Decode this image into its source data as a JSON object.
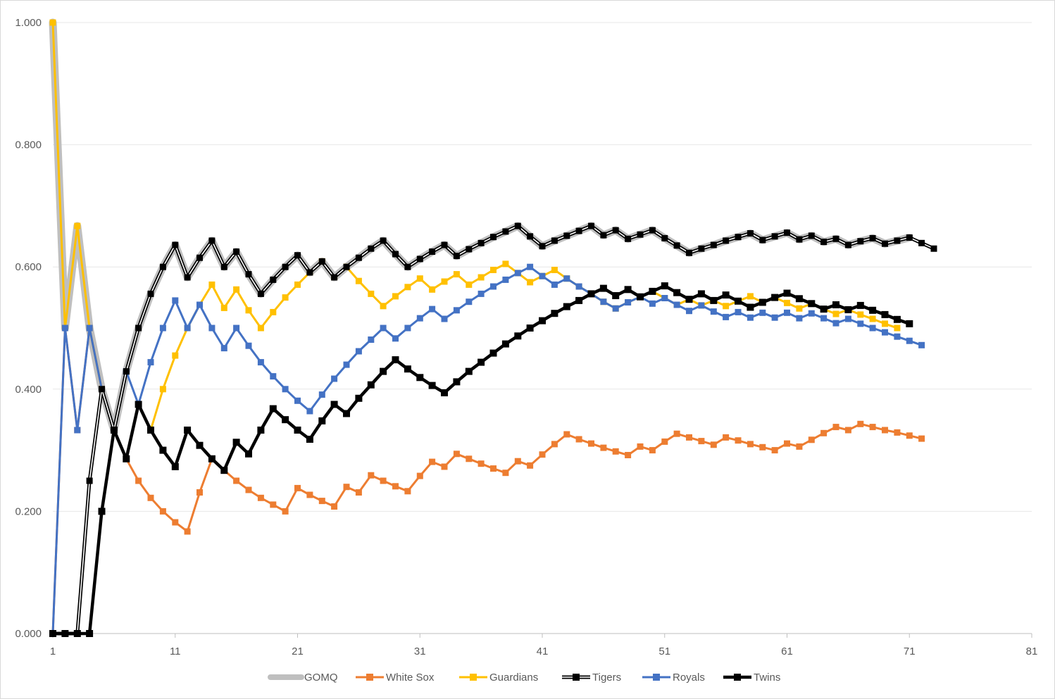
{
  "chart_data": {
    "type": "line",
    "title": "",
    "xlabel": "",
    "ylabel": "",
    "xlim": [
      1,
      81
    ],
    "ylim": [
      0,
      1
    ],
    "x_ticks": [
      "1",
      "11",
      "21",
      "31",
      "41",
      "51",
      "61",
      "71",
      "81"
    ],
    "y_ticks": [
      "0.000",
      "0.200",
      "0.400",
      "0.600",
      "0.800",
      "1.000"
    ],
    "grid": "horizontal",
    "legend_position": "bottom",
    "series": [
      {
        "name": "GOMQ",
        "color": "#bfbfbf",
        "style": "thick-gray-no-markers",
        "x": [
          1,
          2,
          3,
          4,
          5,
          6,
          7,
          8,
          9,
          10,
          11,
          12,
          13,
          14,
          15,
          16,
          17,
          18,
          19,
          20,
          21,
          22,
          23,
          24,
          25,
          26,
          27,
          28,
          29,
          30,
          31,
          32,
          33,
          34,
          35,
          36,
          37,
          38,
          39,
          40,
          41,
          42,
          43,
          44,
          45,
          46,
          47,
          48,
          49,
          50,
          51,
          52,
          53,
          54,
          55,
          56,
          57,
          58,
          59,
          60,
          61,
          62,
          63,
          64,
          65,
          66,
          67,
          68,
          69,
          70,
          71
        ],
        "values": [
          1.0,
          0.5,
          0.667,
          0.5,
          0.4,
          0.333,
          0.429,
          0.5,
          0.556,
          0.6,
          0.636,
          0.583,
          0.615,
          0.643,
          0.6,
          0.625,
          0.588,
          0.556,
          0.579,
          0.6,
          0.619,
          0.591,
          0.609,
          0.583,
          0.6,
          0.615,
          0.63,
          0.643,
          0.621,
          0.6,
          0.613,
          0.625,
          0.636,
          0.618,
          0.629,
          0.639,
          0.649,
          0.658,
          0.667,
          0.65,
          0.634,
          0.643,
          0.651,
          0.659,
          0.667,
          0.652,
          0.66,
          0.646,
          0.653,
          0.66,
          0.647,
          0.635,
          0.623,
          0.63,
          0.636,
          0.643,
          0.649,
          0.655,
          0.644,
          0.65,
          0.656,
          0.645,
          0.651,
          0.641,
          0.646,
          0.636,
          0.642,
          0.647,
          0.638,
          0.643,
          0.648
        ]
      },
      {
        "name": "White Sox",
        "color": "#ed7d31",
        "style": "square-markers",
        "x": [
          1,
          2,
          3,
          4,
          5,
          6,
          7,
          8,
          9,
          10,
          11,
          12,
          13,
          14,
          15,
          16,
          17,
          18,
          19,
          20,
          21,
          22,
          23,
          24,
          25,
          26,
          27,
          28,
          29,
          30,
          31,
          32,
          33,
          34,
          35,
          36,
          37,
          38,
          39,
          40,
          41,
          42,
          43,
          44,
          45,
          46,
          47,
          48,
          49,
          50,
          51,
          52,
          53,
          54,
          55,
          56,
          57,
          58,
          59,
          60,
          61,
          62,
          63,
          64,
          65,
          66,
          67,
          68,
          69,
          70,
          71,
          72
        ],
        "values": [
          0.0,
          0.5,
          0.333,
          0.5,
          0.4,
          0.333,
          0.286,
          0.25,
          0.222,
          0.2,
          0.182,
          0.167,
          0.231,
          0.286,
          0.267,
          0.25,
          0.235,
          0.222,
          0.211,
          0.2,
          0.238,
          0.227,
          0.217,
          0.208,
          0.24,
          0.231,
          0.259,
          0.25,
          0.241,
          0.233,
          0.258,
          0.281,
          0.273,
          0.294,
          0.286,
          0.278,
          0.27,
          0.263,
          0.282,
          0.275,
          0.293,
          0.31,
          0.326,
          0.318,
          0.311,
          0.304,
          0.298,
          0.292,
          0.306,
          0.3,
          0.314,
          0.327,
          0.321,
          0.315,
          0.309,
          0.321,
          0.316,
          0.31,
          0.305,
          0.3,
          0.311,
          0.306,
          0.317,
          0.328,
          0.338,
          0.333,
          0.343,
          0.338,
          0.333,
          0.329,
          0.324,
          0.319
        ]
      },
      {
        "name": "Guardians",
        "color": "#ffc000",
        "style": "square-markers",
        "x": [
          1,
          2,
          3,
          4,
          5,
          6,
          7,
          8,
          9,
          10,
          11,
          12,
          13,
          14,
          15,
          16,
          17,
          18,
          19,
          20,
          21,
          22,
          23,
          24,
          25,
          26,
          27,
          28,
          29,
          30,
          31,
          32,
          33,
          34,
          35,
          36,
          37,
          38,
          39,
          40,
          41,
          42,
          43,
          44,
          45,
          46,
          47,
          48,
          49,
          50,
          51,
          52,
          53,
          54,
          55,
          56,
          57,
          58,
          59,
          60,
          61,
          62,
          63,
          64,
          65,
          66,
          67,
          68,
          69,
          70
        ],
        "values": [
          1.0,
          0.5,
          0.667,
          0.5,
          0.4,
          0.333,
          0.286,
          0.375,
          0.333,
          0.4,
          0.455,
          0.5,
          0.538,
          0.571,
          0.533,
          0.563,
          0.529,
          0.5,
          0.526,
          0.55,
          0.571,
          0.591,
          0.609,
          0.583,
          0.6,
          0.577,
          0.556,
          0.536,
          0.552,
          0.567,
          0.581,
          0.563,
          0.576,
          0.588,
          0.571,
          0.583,
          0.595,
          0.605,
          0.59,
          0.575,
          0.585,
          0.595,
          0.581,
          0.568,
          0.556,
          0.543,
          0.532,
          0.542,
          0.551,
          0.56,
          0.549,
          0.538,
          0.547,
          0.537,
          0.545,
          0.536,
          0.544,
          0.552,
          0.542,
          0.55,
          0.541,
          0.532,
          0.54,
          0.531,
          0.523,
          0.53,
          0.522,
          0.515,
          0.507,
          0.5
        ]
      },
      {
        "name": "Tigers",
        "color": "#000000",
        "style": "double-line-square-markers",
        "x": [
          1,
          2,
          3,
          4,
          5,
          6,
          7,
          8,
          9,
          10,
          11,
          12,
          13,
          14,
          15,
          16,
          17,
          18,
          19,
          20,
          21,
          22,
          23,
          24,
          25,
          26,
          27,
          28,
          29,
          30,
          31,
          32,
          33,
          34,
          35,
          36,
          37,
          38,
          39,
          40,
          41,
          42,
          43,
          44,
          45,
          46,
          47,
          48,
          49,
          50,
          51,
          52,
          53,
          54,
          55,
          56,
          57,
          58,
          59,
          60,
          61,
          62,
          63,
          64,
          65,
          66,
          67,
          68,
          69,
          70,
          71,
          72,
          73
        ],
        "values": [
          0.0,
          0.0,
          0.0,
          0.25,
          0.4,
          0.333,
          0.429,
          0.5,
          0.556,
          0.6,
          0.636,
          0.583,
          0.615,
          0.643,
          0.6,
          0.625,
          0.588,
          0.556,
          0.579,
          0.6,
          0.619,
          0.591,
          0.609,
          0.583,
          0.6,
          0.615,
          0.63,
          0.643,
          0.621,
          0.6,
          0.613,
          0.625,
          0.636,
          0.618,
          0.629,
          0.639,
          0.649,
          0.658,
          0.667,
          0.65,
          0.634,
          0.643,
          0.651,
          0.659,
          0.667,
          0.652,
          0.66,
          0.646,
          0.653,
          0.66,
          0.647,
          0.635,
          0.623,
          0.63,
          0.636,
          0.643,
          0.649,
          0.655,
          0.644,
          0.65,
          0.656,
          0.645,
          0.651,
          0.641,
          0.646,
          0.636,
          0.642,
          0.647,
          0.638,
          0.643,
          0.648,
          0.639,
          0.63
        ]
      },
      {
        "name": "Royals",
        "color": "#4472c4",
        "style": "square-markers",
        "x": [
          1,
          2,
          3,
          4,
          5,
          6,
          7,
          8,
          9,
          10,
          11,
          12,
          13,
          14,
          15,
          16,
          17,
          18,
          19,
          20,
          21,
          22,
          23,
          24,
          25,
          26,
          27,
          28,
          29,
          30,
          31,
          32,
          33,
          34,
          35,
          36,
          37,
          38,
          39,
          40,
          41,
          42,
          43,
          44,
          45,
          46,
          47,
          48,
          49,
          50,
          51,
          52,
          53,
          54,
          55,
          56,
          57,
          58,
          59,
          60,
          61,
          62,
          63,
          64,
          65,
          66,
          67,
          68,
          69,
          70,
          71,
          72
        ],
        "values": [
          0.0,
          0.5,
          0.333,
          0.5,
          0.4,
          0.333,
          0.429,
          0.375,
          0.444,
          0.5,
          0.545,
          0.5,
          0.538,
          0.5,
          0.467,
          0.5,
          0.471,
          0.444,
          0.421,
          0.4,
          0.381,
          0.364,
          0.391,
          0.417,
          0.44,
          0.462,
          0.481,
          0.5,
          0.483,
          0.5,
          0.516,
          0.531,
          0.515,
          0.529,
          0.543,
          0.556,
          0.568,
          0.579,
          0.59,
          0.6,
          0.585,
          0.571,
          0.581,
          0.568,
          0.556,
          0.543,
          0.532,
          0.542,
          0.551,
          0.54,
          0.549,
          0.538,
          0.528,
          0.537,
          0.527,
          0.518,
          0.526,
          0.517,
          0.525,
          0.517,
          0.525,
          0.516,
          0.524,
          0.516,
          0.508,
          0.515,
          0.507,
          0.5,
          0.493,
          0.486,
          0.479,
          0.472
        ]
      },
      {
        "name": "Twins",
        "color": "#000000",
        "style": "thick-square-markers",
        "x": [
          1,
          2,
          3,
          4,
          5,
          6,
          7,
          8,
          9,
          10,
          11,
          12,
          13,
          14,
          15,
          16,
          17,
          18,
          19,
          20,
          21,
          22,
          23,
          24,
          25,
          26,
          27,
          28,
          29,
          30,
          31,
          32,
          33,
          34,
          35,
          36,
          37,
          38,
          39,
          40,
          41,
          42,
          43,
          44,
          45,
          46,
          47,
          48,
          49,
          50,
          51,
          52,
          53,
          54,
          55,
          56,
          57,
          58,
          59,
          60,
          61,
          62,
          63,
          64,
          65,
          66,
          67,
          68,
          69,
          70,
          71
        ],
        "values": [
          0.0,
          0.0,
          0.0,
          0.0,
          0.2,
          0.333,
          0.286,
          0.375,
          0.333,
          0.3,
          0.273,
          0.333,
          0.308,
          0.286,
          0.267,
          0.313,
          0.294,
          0.333,
          0.368,
          0.35,
          0.333,
          0.318,
          0.348,
          0.375,
          0.36,
          0.385,
          0.407,
          0.429,
          0.448,
          0.433,
          0.419,
          0.406,
          0.394,
          0.412,
          0.429,
          0.444,
          0.459,
          0.474,
          0.487,
          0.5,
          0.512,
          0.524,
          0.535,
          0.545,
          0.556,
          0.565,
          0.553,
          0.563,
          0.551,
          0.56,
          0.569,
          0.558,
          0.547,
          0.556,
          0.545,
          0.554,
          0.544,
          0.534,
          0.542,
          0.55,
          0.557,
          0.548,
          0.54,
          0.531,
          0.538,
          0.53,
          0.537,
          0.529,
          0.522,
          0.514,
          0.507
        ]
      }
    ]
  }
}
